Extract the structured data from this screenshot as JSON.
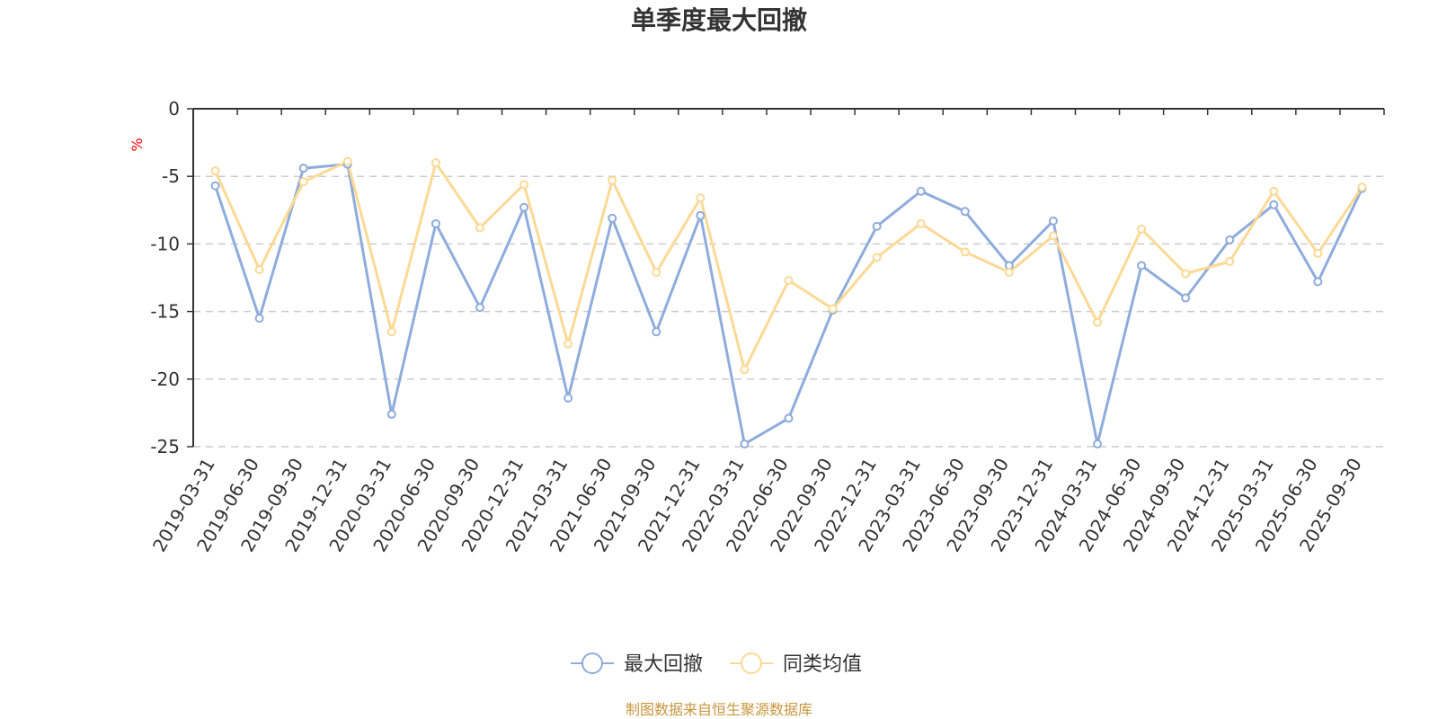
{
  "colors": {
    "series1": "#8eacdc",
    "series2": "#fcd995",
    "axis": "#333333",
    "grid": "#cccccc",
    "unit": "#ff0000",
    "source": "#c8963c"
  },
  "footer": {
    "source": "制图数据来自恒生聚源数据库"
  },
  "chart_data": {
    "type": "line",
    "title": "单季度最大回撤",
    "ylabel": "%",
    "ylim": [
      -25,
      0
    ],
    "yticks": [
      0,
      -5,
      -10,
      -15,
      -20,
      -25
    ],
    "grid": true,
    "legend_position": "bottom-center",
    "categories": [
      "2019-03-31",
      "2019-06-30",
      "2019-09-30",
      "2019-12-31",
      "2020-03-31",
      "2020-06-30",
      "2020-09-30",
      "2020-12-31",
      "2021-03-31",
      "2021-06-30",
      "2021-09-30",
      "2021-12-31",
      "2022-03-31",
      "2022-06-30",
      "2022-09-30",
      "2022-12-31",
      "2023-03-31",
      "2023-06-30",
      "2023-09-30",
      "2023-12-31",
      "2024-03-31",
      "2024-06-30",
      "2024-09-30",
      "2024-12-31",
      "2025-03-31",
      "2025-06-30",
      "2025-09-30"
    ],
    "series": [
      {
        "name": "最大回撤",
        "color": "#8eacdc",
        "values": [
          -5.7,
          -15.5,
          -4.4,
          -4.1,
          -22.6,
          -8.5,
          -14.7,
          -7.3,
          -21.4,
          -8.1,
          -16.5,
          -7.9,
          -24.8,
          -22.9,
          -14.9,
          -8.7,
          -6.1,
          -7.6,
          -11.6,
          -8.3,
          -24.8,
          -11.6,
          -14.0,
          -9.7,
          -7.1,
          -12.8,
          -5.9
        ]
      },
      {
        "name": "同类均值",
        "color": "#fcd995",
        "values": [
          -4.6,
          -11.9,
          -5.4,
          -3.9,
          -16.5,
          -4.0,
          -8.8,
          -5.6,
          -17.4,
          -5.3,
          -12.1,
          -6.6,
          -19.3,
          -12.7,
          -14.8,
          -11.0,
          -8.5,
          -10.6,
          -12.1,
          -9.4,
          -15.8,
          -8.9,
          -12.2,
          -11.3,
          -6.1,
          -10.7,
          -5.8
        ]
      }
    ]
  }
}
